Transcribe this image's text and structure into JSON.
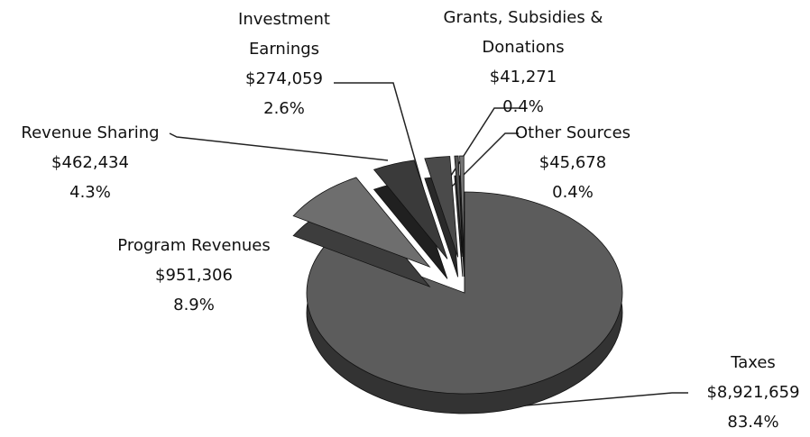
{
  "chart_data": {
    "type": "pie",
    "categories": [
      "Taxes",
      "Program Revenues",
      "Revenue Sharing",
      "Investment Earnings",
      "Grants, Subsidies & Donations",
      "Other Sources"
    ],
    "values": [
      8921659,
      951306,
      462434,
      274059,
      41271,
      45678
    ],
    "value_labels": [
      "$8,921,659",
      "$951,306",
      "$462,434",
      "$274,059",
      "$41,271",
      "$45,678"
    ],
    "percentages": [
      83.4,
      8.9,
      4.3,
      2.6,
      0.4,
      0.4
    ],
    "percentage_labels": [
      "83.4%",
      "8.9%",
      "4.3%",
      "2.6%",
      "0.4%",
      "0.4%"
    ],
    "colors": [
      "#5c5c5c",
      "#6e6e6e",
      "#3a3a3a",
      "#4a4a4a",
      "#555555",
      "#777777"
    ]
  }
}
